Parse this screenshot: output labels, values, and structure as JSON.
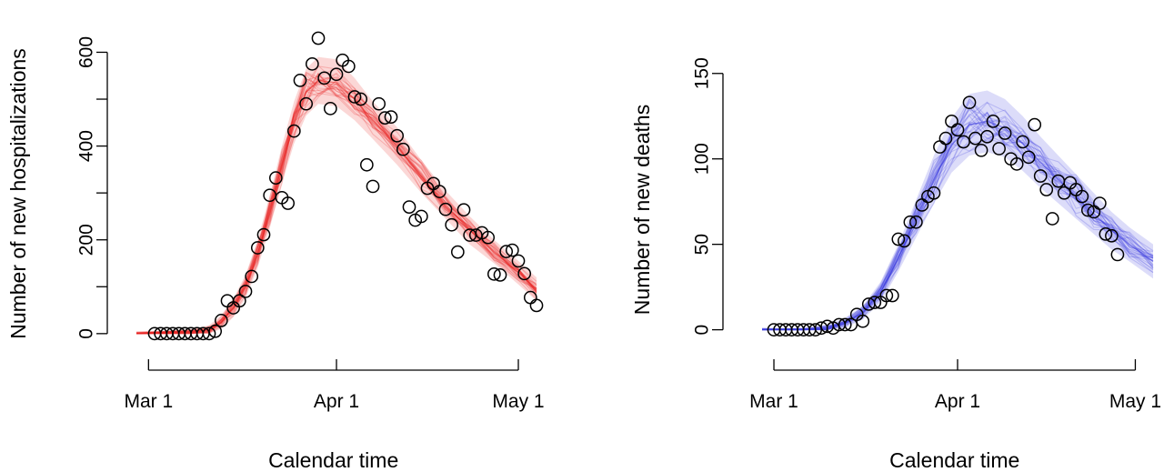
{
  "chart_data": [
    {
      "type": "scatter",
      "xlabel": "Calendar time",
      "ylabel": "Number of new hospitalizations",
      "x_ticks": [
        "Mar 1",
        "Apr 1",
        "May 1"
      ],
      "y_ticks": [
        0,
        200,
        400,
        600
      ],
      "xlim": [
        "2020-02-28",
        "2020-05-04"
      ],
      "ylim": [
        -10,
        630
      ],
      "band_color": "#e8201e",
      "observed": [
        [
          "2020-03-02",
          0
        ],
        [
          "2020-03-03",
          0
        ],
        [
          "2020-03-04",
          0
        ],
        [
          "2020-03-05",
          0
        ],
        [
          "2020-03-06",
          0
        ],
        [
          "2020-03-07",
          0
        ],
        [
          "2020-03-08",
          0
        ],
        [
          "2020-03-09",
          0
        ],
        [
          "2020-03-10",
          0
        ],
        [
          "2020-03-11",
          0
        ],
        [
          "2020-03-12",
          5
        ],
        [
          "2020-03-13",
          28
        ],
        [
          "2020-03-14",
          70
        ],
        [
          "2020-03-15",
          55
        ],
        [
          "2020-03-16",
          70
        ],
        [
          "2020-03-17",
          90
        ],
        [
          "2020-03-18",
          122
        ],
        [
          "2020-03-19",
          183
        ],
        [
          "2020-03-20",
          211
        ],
        [
          "2020-03-21",
          295
        ],
        [
          "2020-03-22",
          332
        ],
        [
          "2020-03-23",
          290
        ],
        [
          "2020-03-24",
          278
        ],
        [
          "2020-03-25",
          432
        ],
        [
          "2020-03-26",
          540
        ],
        [
          "2020-03-27",
          490
        ],
        [
          "2020-03-28",
          575
        ],
        [
          "2020-03-29",
          630
        ],
        [
          "2020-03-30",
          545
        ],
        [
          "2020-03-31",
          480
        ],
        [
          "2020-04-01",
          553
        ],
        [
          "2020-04-02",
          583
        ],
        [
          "2020-04-03",
          570
        ],
        [
          "2020-04-04",
          505
        ],
        [
          "2020-04-05",
          500
        ],
        [
          "2020-04-06",
          360
        ],
        [
          "2020-04-07",
          314
        ],
        [
          "2020-04-08",
          490
        ],
        [
          "2020-04-09",
          460
        ],
        [
          "2020-04-10",
          462
        ],
        [
          "2020-04-11",
          422
        ],
        [
          "2020-04-12",
          393
        ],
        [
          "2020-04-13",
          270
        ],
        [
          "2020-04-14",
          242
        ],
        [
          "2020-04-15",
          250
        ],
        [
          "2020-04-16",
          310
        ],
        [
          "2020-04-17",
          320
        ],
        [
          "2020-04-18",
          303
        ],
        [
          "2020-04-19",
          265
        ],
        [
          "2020-04-20",
          232
        ],
        [
          "2020-04-21",
          174
        ],
        [
          "2020-04-22",
          264
        ],
        [
          "2020-04-23",
          210
        ],
        [
          "2020-04-24",
          210
        ],
        [
          "2020-04-25",
          215
        ],
        [
          "2020-04-26",
          205
        ],
        [
          "2020-04-27",
          127
        ],
        [
          "2020-04-28",
          125
        ],
        [
          "2020-04-29",
          175
        ],
        [
          "2020-04-30",
          178
        ],
        [
          "2020-05-01",
          155
        ],
        [
          "2020-05-02",
          128
        ],
        [
          "2020-05-03",
          77
        ],
        [
          "2020-05-04",
          60
        ]
      ],
      "model_mean": [
        [
          "2020-02-28",
          0
        ],
        [
          "2020-03-08",
          3
        ],
        [
          "2020-03-11",
          8
        ],
        [
          "2020-03-13",
          25
        ],
        [
          "2020-03-15",
          55
        ],
        [
          "2020-03-17",
          100
        ],
        [
          "2020-03-19",
          170
        ],
        [
          "2020-03-21",
          260
        ],
        [
          "2020-03-23",
          360
        ],
        [
          "2020-03-25",
          450
        ],
        [
          "2020-03-27",
          515
        ],
        [
          "2020-03-29",
          540
        ],
        [
          "2020-04-01",
          535
        ],
        [
          "2020-04-04",
          500
        ],
        [
          "2020-04-07",
          455
        ],
        [
          "2020-04-11",
          400
        ],
        [
          "2020-04-15",
          335
        ],
        [
          "2020-04-19",
          275
        ],
        [
          "2020-04-23",
          220
        ],
        [
          "2020-04-27",
          175
        ],
        [
          "2020-05-01",
          130
        ],
        [
          "2020-05-04",
          95
        ]
      ],
      "band_halfwidth": [
        [
          0,
          4
        ],
        [
          3,
          6
        ],
        [
          8,
          10
        ],
        [
          25,
          15
        ],
        [
          55,
          20
        ],
        [
          100,
          25
        ],
        [
          170,
          30
        ],
        [
          260,
          35
        ],
        [
          360,
          40
        ],
        [
          450,
          45
        ],
        [
          515,
          50
        ],
        [
          540,
          50
        ],
        [
          535,
          50
        ],
        [
          500,
          45
        ],
        [
          455,
          40
        ],
        [
          400,
          40
        ],
        [
          335,
          35
        ],
        [
          275,
          30
        ],
        [
          220,
          30
        ],
        [
          175,
          25
        ],
        [
          130,
          25
        ],
        [
          95,
          25
        ]
      ]
    },
    {
      "type": "scatter",
      "xlabel": "Calendar time",
      "ylabel": "Number of new deaths",
      "x_ticks": [
        "Mar 1",
        "Apr 1",
        "May 1"
      ],
      "y_ticks": [
        0,
        50,
        100,
        150
      ],
      "xlim": [
        "2020-02-28",
        "2020-05-04"
      ],
      "ylim": [
        -5,
        152
      ],
      "band_color": "#3b3bdf",
      "observed": [
        [
          "2020-03-01",
          0
        ],
        [
          "2020-03-02",
          0
        ],
        [
          "2020-03-03",
          0
        ],
        [
          "2020-03-04",
          0
        ],
        [
          "2020-03-05",
          0
        ],
        [
          "2020-03-06",
          0
        ],
        [
          "2020-03-07",
          0
        ],
        [
          "2020-03-08",
          0
        ],
        [
          "2020-03-09",
          1
        ],
        [
          "2020-03-10",
          2
        ],
        [
          "2020-03-11",
          1
        ],
        [
          "2020-03-12",
          3
        ],
        [
          "2020-03-13",
          3
        ],
        [
          "2020-03-14",
          3
        ],
        [
          "2020-03-15",
          9
        ],
        [
          "2020-03-16",
          5
        ],
        [
          "2020-03-17",
          15
        ],
        [
          "2020-03-18",
          16
        ],
        [
          "2020-03-19",
          16
        ],
        [
          "2020-03-20",
          20
        ],
        [
          "2020-03-21",
          20
        ],
        [
          "2020-03-22",
          53
        ],
        [
          "2020-03-23",
          52
        ],
        [
          "2020-03-24",
          63
        ],
        [
          "2020-03-25",
          63
        ],
        [
          "2020-03-26",
          73
        ],
        [
          "2020-03-27",
          78
        ],
        [
          "2020-03-28",
          80
        ],
        [
          "2020-03-29",
          107
        ],
        [
          "2020-03-30",
          112
        ],
        [
          "2020-03-31",
          122
        ],
        [
          "2020-04-01",
          117
        ],
        [
          "2020-04-02",
          110
        ],
        [
          "2020-04-03",
          133
        ],
        [
          "2020-04-04",
          112
        ],
        [
          "2020-04-05",
          105
        ],
        [
          "2020-04-06",
          113
        ],
        [
          "2020-04-07",
          122
        ],
        [
          "2020-04-08",
          106
        ],
        [
          "2020-04-09",
          115
        ],
        [
          "2020-04-10",
          100
        ],
        [
          "2020-04-11",
          97
        ],
        [
          "2020-04-12",
          110
        ],
        [
          "2020-04-13",
          101
        ],
        [
          "2020-04-14",
          120
        ],
        [
          "2020-04-15",
          90
        ],
        [
          "2020-04-16",
          82
        ],
        [
          "2020-04-17",
          65
        ],
        [
          "2020-04-18",
          87
        ],
        [
          "2020-04-19",
          80
        ],
        [
          "2020-04-20",
          86
        ],
        [
          "2020-04-21",
          82
        ],
        [
          "2020-04-22",
          78
        ],
        [
          "2020-04-23",
          70
        ],
        [
          "2020-04-24",
          69
        ],
        [
          "2020-04-25",
          74
        ],
        [
          "2020-04-26",
          56
        ],
        [
          "2020-04-27",
          55
        ],
        [
          "2020-04-28",
          44
        ]
      ],
      "model_mean": [
        [
          "2020-02-28",
          0
        ],
        [
          "2020-03-06",
          0
        ],
        [
          "2020-03-10",
          1
        ],
        [
          "2020-03-13",
          4
        ],
        [
          "2020-03-16",
          10
        ],
        [
          "2020-03-19",
          22
        ],
        [
          "2020-03-22",
          42
        ],
        [
          "2020-03-25",
          65
        ],
        [
          "2020-03-28",
          88
        ],
        [
          "2020-03-31",
          108
        ],
        [
          "2020-04-03",
          120
        ],
        [
          "2020-04-06",
          122
        ],
        [
          "2020-04-09",
          118
        ],
        [
          "2020-04-12",
          109
        ],
        [
          "2020-04-15",
          98
        ],
        [
          "2020-04-18",
          88
        ],
        [
          "2020-04-21",
          78
        ],
        [
          "2020-04-24",
          68
        ],
        [
          "2020-04-27",
          58
        ],
        [
          "2020-04-30",
          50
        ],
        [
          "2020-05-04",
          40
        ]
      ],
      "band_halfwidth": [
        [
          0,
          1
        ],
        [
          0,
          1
        ],
        [
          1,
          2
        ],
        [
          4,
          3
        ],
        [
          10,
          4
        ],
        [
          22,
          6
        ],
        [
          42,
          8
        ],
        [
          65,
          11
        ],
        [
          88,
          14
        ],
        [
          108,
          16
        ],
        [
          120,
          18
        ],
        [
          122,
          18
        ],
        [
          118,
          17
        ],
        [
          109,
          16
        ],
        [
          98,
          15
        ],
        [
          88,
          14
        ],
        [
          78,
          13
        ],
        [
          68,
          12
        ],
        [
          58,
          11
        ],
        [
          50,
          10
        ],
        [
          40,
          10
        ]
      ]
    }
  ]
}
